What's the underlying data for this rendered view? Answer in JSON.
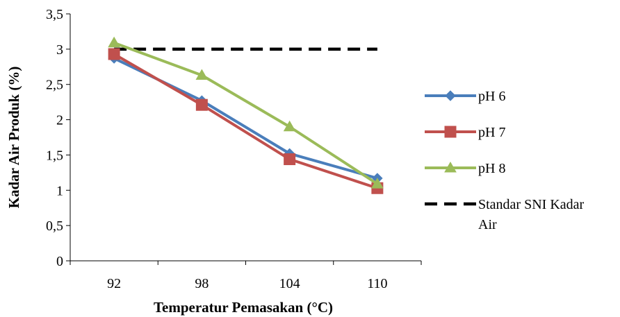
{
  "chart_data": {
    "type": "line",
    "title": "",
    "xlabel": "Temperatur Pemasakan (°C)",
    "ylabel": "Kadar Air Produk (%)",
    "categories": [
      "92",
      "98",
      "104",
      "110"
    ],
    "y_ticks": [
      "0",
      "0,5",
      "1",
      "1,5",
      "2",
      "2,5",
      "3",
      "3,5"
    ],
    "ylim": [
      0,
      3.5
    ],
    "grid": false,
    "legend_position": "right",
    "series": [
      {
        "name": "pH 6",
        "values": [
          2.87,
          2.27,
          1.52,
          1.17
        ],
        "color": "#4a7ebb",
        "marker": "diamond",
        "dash": false
      },
      {
        "name": "pH 7",
        "values": [
          2.93,
          2.21,
          1.44,
          1.03
        ],
        "color": "#c0504d",
        "marker": "square",
        "dash": false
      },
      {
        "name": "pH 8",
        "values": [
          3.09,
          2.63,
          1.9,
          1.09
        ],
        "color": "#9bbb59",
        "marker": "triangle",
        "dash": false
      },
      {
        "name": "Standar SNI Kadar Air",
        "values": [
          3,
          3,
          3,
          3
        ],
        "color": "#000000",
        "marker": "none",
        "dash": true
      }
    ]
  }
}
